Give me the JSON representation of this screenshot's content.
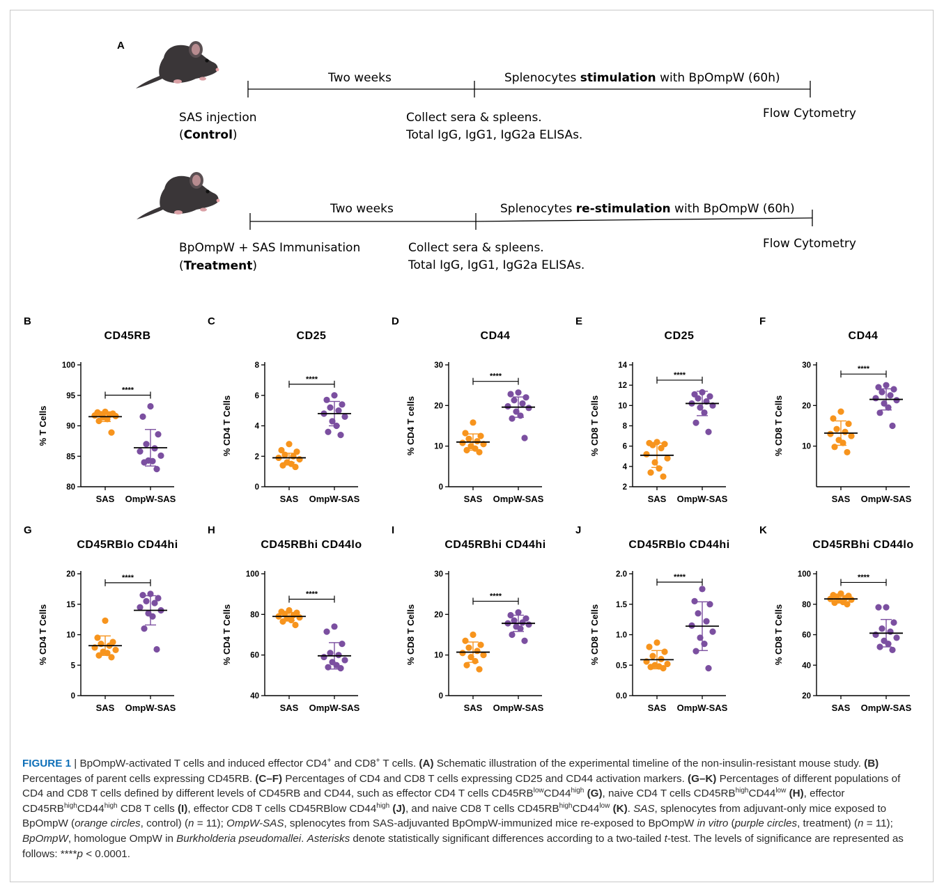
{
  "panel_a": {
    "label": "A",
    "control": {
      "period_label": "Two weeks",
      "stim_pre": "Splenocytes ",
      "stim_bold": "stimulation",
      "stim_post": " with BpOmpW (60h)",
      "start_line1": "SAS injection",
      "start_open": "(",
      "start_bold": "Control",
      "start_close": ")",
      "collect_line1": "Collect sera & spleens.",
      "collect_line2": "Total IgG, IgG1, IgG2a ELISAs.",
      "end_label": "Flow Cytometry",
      "icon": "mouse-icon"
    },
    "treatment": {
      "period_label": "Two weeks",
      "stim_pre": "Splenocytes ",
      "stim_bold": "re-stimulation",
      "stim_post": " with BpOmpW (60h)",
      "start_line1": "BpOmpW + SAS Immunisation",
      "start_open": "(",
      "start_bold": "Treatment",
      "start_close": ")",
      "collect_line1": "Collect sera & spleens.",
      "collect_line2": "Total IgG, IgG1, IgG2a ELISAs.",
      "end_label": "Flow Cytometry",
      "icon": "mouse-icon"
    }
  },
  "colors": {
    "sas": "#f7941d",
    "ompw": "#7b4fa0",
    "axis": "#000000",
    "caption_label": "#0e6fb8"
  },
  "chart_data": [
    {
      "id": "B",
      "type": "scatter",
      "title": "CD45RB",
      "ylabel": "% T Cells",
      "categories": [
        "SAS",
        "OmpW-SAS"
      ],
      "ylim": [
        80,
        100
      ],
      "yticks": [
        80,
        85,
        90,
        95,
        100
      ],
      "significance": "****",
      "series": [
        {
          "name": "SAS",
          "mean": 91.5,
          "sd": 0.8,
          "values": [
            92.3,
            92.2,
            92.0,
            91.9,
            91.8,
            91.7,
            91.6,
            91.4,
            91.1,
            90.8,
            88.9
          ]
        },
        {
          "name": "OmpW-SAS",
          "mean": 86.4,
          "sd": 3.0,
          "values": [
            93.2,
            91.5,
            88.6,
            87.0,
            86.3,
            85.8,
            85.1,
            84.3,
            84.2,
            84.0,
            82.9
          ]
        }
      ]
    },
    {
      "id": "C",
      "type": "scatter",
      "title": "CD25",
      "ylabel": "% CD4 T Cells",
      "categories": [
        "SAS",
        "OmpW-SAS"
      ],
      "ylim": [
        0,
        8
      ],
      "yticks": [
        0,
        2,
        4,
        6,
        8
      ],
      "significance": "****",
      "series": [
        {
          "name": "SAS",
          "mean": 1.9,
          "sd": 0.3,
          "values": [
            2.8,
            2.4,
            2.3,
            2.1,
            2.0,
            1.9,
            1.8,
            1.6,
            1.5,
            1.4,
            1.3
          ]
        },
        {
          "name": "OmpW-SAS",
          "mean": 4.8,
          "sd": 0.8,
          "values": [
            6.0,
            5.7,
            5.4,
            5.2,
            5.0,
            4.8,
            4.6,
            4.3,
            4.0,
            3.6,
            3.4
          ]
        }
      ]
    },
    {
      "id": "D",
      "type": "scatter",
      "title": "CD44",
      "ylabel": "% CD4 T cells",
      "categories": [
        "SAS",
        "OmpW-SAS"
      ],
      "ylim": [
        0,
        30
      ],
      "yticks": [
        0,
        10,
        20,
        30
      ],
      "significance": "****",
      "series": [
        {
          "name": "SAS",
          "mean": 11.0,
          "sd": 2.0,
          "values": [
            15.8,
            13.2,
            12.5,
            11.8,
            11.2,
            10.8,
            10.5,
            10.0,
            9.4,
            9.0,
            8.5
          ]
        },
        {
          "name": "OmpW-SAS",
          "mean": 19.6,
          "sd": 2.5,
          "values": [
            23.2,
            22.8,
            22.0,
            21.3,
            20.5,
            19.8,
            19.4,
            18.5,
            17.5,
            16.8,
            12.0
          ]
        }
      ]
    },
    {
      "id": "E",
      "type": "scatter",
      "title": "CD25",
      "ylabel": "% CD8 T Cells",
      "categories": [
        "SAS",
        "OmpW-SAS"
      ],
      "ylim": [
        2,
        14
      ],
      "yticks": [
        2,
        4,
        6,
        8,
        10,
        12,
        14
      ],
      "significance": "****",
      "series": [
        {
          "name": "SAS",
          "mean": 5.1,
          "sd": 1.2,
          "values": [
            6.4,
            6.3,
            6.2,
            6.1,
            5.8,
            5.2,
            4.8,
            4.4,
            3.8,
            3.4,
            3.0
          ]
        },
        {
          "name": "OmpW-SAS",
          "mean": 10.2,
          "sd": 1.2,
          "values": [
            11.3,
            11.1,
            10.9,
            10.7,
            10.4,
            10.2,
            10.0,
            9.8,
            9.3,
            8.3,
            7.4
          ]
        }
      ]
    },
    {
      "id": "F",
      "type": "scatter",
      "title": "CD44",
      "ylabel": "% CD8 T Cells",
      "categories": [
        "SAS",
        "OmpW-SAS"
      ],
      "ylim": [
        0,
        30
      ],
      "yticks": [
        10,
        20,
        30
      ],
      "significance": "****",
      "series": [
        {
          "name": "SAS",
          "mean": 13.2,
          "sd": 3.0,
          "values": [
            18.5,
            16.8,
            15.5,
            14.2,
            13.5,
            13.0,
            12.5,
            11.5,
            10.8,
            9.8,
            8.5
          ]
        },
        {
          "name": "OmpW-SAS",
          "mean": 21.5,
          "sd": 2.6,
          "values": [
            25.0,
            24.5,
            24.0,
            23.3,
            22.5,
            21.8,
            21.3,
            20.5,
            19.5,
            18.2,
            15.0
          ]
        }
      ]
    },
    {
      "id": "G",
      "type": "scatter",
      "title": "CD45RBlo CD44hi",
      "ylabel": "% CD4 T Cells",
      "categories": [
        "SAS",
        "OmpW-SAS"
      ],
      "ylim": [
        0,
        20
      ],
      "yticks": [
        0,
        5,
        10,
        15,
        20
      ],
      "significance": "****",
      "series": [
        {
          "name": "SAS",
          "mean": 8.2,
          "sd": 1.6,
          "values": [
            12.3,
            9.5,
            8.8,
            8.5,
            8.2,
            7.9,
            7.5,
            7.2,
            7.0,
            6.6,
            6.3
          ]
        },
        {
          "name": "OmpW-SAS",
          "mean": 14.0,
          "sd": 2.4,
          "values": [
            16.7,
            16.5,
            16.0,
            15.5,
            15.2,
            14.5,
            14.0,
            13.5,
            13.0,
            11.0,
            7.6
          ]
        }
      ]
    },
    {
      "id": "H",
      "type": "scatter",
      "title": "CD45RBhi CD44lo",
      "ylabel": "% CD4 T Cells",
      "categories": [
        "SAS",
        "OmpW-SAS"
      ],
      "ylim": [
        40,
        100
      ],
      "yticks": [
        40,
        60,
        80,
        100
      ],
      "significance": "****",
      "series": [
        {
          "name": "SAS",
          "mean": 79.0,
          "sd": 2.0,
          "values": [
            82.0,
            81.3,
            80.8,
            80.2,
            79.6,
            79.0,
            78.5,
            78.0,
            77.2,
            76.5,
            74.8
          ]
        },
        {
          "name": "OmpW-SAS",
          "mean": 59.6,
          "sd": 6.5,
          "values": [
            74.0,
            71.5,
            65.5,
            61.0,
            60.0,
            59.0,
            57.5,
            56.5,
            55.0,
            54.0,
            53.5
          ]
        }
      ]
    },
    {
      "id": "I",
      "type": "scatter",
      "title": "CD45RBhi CD44hi",
      "ylabel": "% CD8 T Cells",
      "categories": [
        "SAS",
        "OmpW-SAS"
      ],
      "ylim": [
        0,
        30
      ],
      "yticks": [
        0,
        10,
        20,
        30
      ],
      "significance": "****",
      "series": [
        {
          "name": "SAS",
          "mean": 10.7,
          "sd": 2.5,
          "values": [
            15.0,
            13.5,
            12.5,
            11.8,
            11.0,
            10.5,
            10.0,
            9.5,
            8.5,
            7.5,
            6.5
          ]
        },
        {
          "name": "OmpW-SAS",
          "mean": 17.8,
          "sd": 2.0,
          "values": [
            20.5,
            19.8,
            19.0,
            18.5,
            18.0,
            17.8,
            17.5,
            17.0,
            16.5,
            15.0,
            13.5
          ]
        }
      ]
    },
    {
      "id": "J",
      "type": "scatter",
      "title": "CD45RBlo CD44hi",
      "ylabel": "% CD8 T Cells",
      "categories": [
        "SAS",
        "OmpW-SAS"
      ],
      "ylim": [
        0,
        2.0
      ],
      "yticks": [
        0.0,
        0.5,
        1.0,
        1.5,
        2.0
      ],
      "significance": "****",
      "series": [
        {
          "name": "SAS",
          "mean": 0.59,
          "sd": 0.15,
          "values": [
            0.87,
            0.8,
            0.72,
            0.65,
            0.6,
            0.56,
            0.52,
            0.5,
            0.48,
            0.47,
            0.45
          ]
        },
        {
          "name": "OmpW-SAS",
          "mean": 1.14,
          "sd": 0.4,
          "values": [
            1.75,
            1.55,
            1.5,
            1.35,
            1.22,
            1.15,
            1.05,
            0.95,
            0.85,
            0.73,
            0.45
          ]
        }
      ]
    },
    {
      "id": "K",
      "type": "scatter",
      "title": "CD45RBhi CD44lo",
      "ylabel": "% CD8 T Cells",
      "categories": [
        "SAS",
        "OmpW-SAS"
      ],
      "ylim": [
        20,
        100
      ],
      "yticks": [
        20,
        40,
        60,
        80,
        100
      ],
      "significance": "****",
      "series": [
        {
          "name": "SAS",
          "mean": 83.5,
          "sd": 2.0,
          "values": [
            87.0,
            86.0,
            85.5,
            85.0,
            84.0,
            83.5,
            83.0,
            82.5,
            81.5,
            81.0,
            80.0
          ]
        },
        {
          "name": "OmpW-SAS",
          "mean": 61.0,
          "sd": 9.0,
          "values": [
            78.0,
            78.0,
            68.0,
            64.0,
            62.0,
            60.0,
            58.0,
            56.0,
            54.0,
            52.0,
            50.0
          ]
        }
      ]
    }
  ],
  "caption": {
    "figure_label": "FIGURE 1",
    "sep": " | ",
    "parts": [
      {
        "t": "BpOmpW-activated T cells and induced effector CD4"
      },
      {
        "t": "+",
        "f": "sup"
      },
      {
        "t": " and CD8"
      },
      {
        "t": "+",
        "f": "sup"
      },
      {
        "t": " T cells. "
      },
      {
        "t": "(A)",
        "f": "b"
      },
      {
        "t": " Schematic illustration of the experimental timeline of the non-insulin-resistant mouse study. "
      },
      {
        "t": "(B)",
        "f": "b"
      },
      {
        "t": " Percentages of parent cells expressing CD45RB. "
      },
      {
        "t": "(C–F)",
        "f": "b"
      },
      {
        "t": " Percentages of CD4 and CD8 T cells expressing CD25 and CD44 activation markers. "
      },
      {
        "t": "(G–K)",
        "f": "b"
      },
      {
        "t": " Percentages of different populations of CD4 and CD8 T cells defined by different levels of CD45RB and CD44, such as effector CD4 T cells CD45RB"
      },
      {
        "t": "low",
        "f": "sup"
      },
      {
        "t": "CD44"
      },
      {
        "t": "high",
        "f": "sup"
      },
      {
        "t": " "
      },
      {
        "t": "(G)",
        "f": "b"
      },
      {
        "t": ", naive CD4 T cells CD45RB"
      },
      {
        "t": "high",
        "f": "sup"
      },
      {
        "t": "CD44"
      },
      {
        "t": "low",
        "f": "sup"
      },
      {
        "t": " "
      },
      {
        "t": "(H)",
        "f": "b"
      },
      {
        "t": ", effector CD45RB"
      },
      {
        "t": "high",
        "f": "sup"
      },
      {
        "t": "CD44"
      },
      {
        "t": "high",
        "f": "sup"
      },
      {
        "t": " CD8 T cells "
      },
      {
        "t": "(I)",
        "f": "b"
      },
      {
        "t": ", effector CD8 T cells CD45RBlow CD44"
      },
      {
        "t": "high",
        "f": "sup"
      },
      {
        "t": " "
      },
      {
        "t": "(J)",
        "f": "b"
      },
      {
        "t": ", and naive CD8 T cells CD45RB"
      },
      {
        "t": "high",
        "f": "sup"
      },
      {
        "t": "CD44"
      },
      {
        "t": "low",
        "f": "sup"
      },
      {
        "t": " "
      },
      {
        "t": "(K)",
        "f": "b"
      },
      {
        "t": ". "
      },
      {
        "t": "SAS",
        "f": "i"
      },
      {
        "t": ", splenocytes from adjuvant-only mice exposed to BpOmpW ("
      },
      {
        "t": "orange circles",
        "f": "i"
      },
      {
        "t": ", control) ("
      },
      {
        "t": "n",
        "f": "i"
      },
      {
        "t": " = 11); "
      },
      {
        "t": "OmpW-SAS",
        "f": "i"
      },
      {
        "t": ", splenocytes from SAS-adjuvanted BpOmpW-immunized mice re-exposed to BpOmpW "
      },
      {
        "t": "in vitro",
        "f": "i"
      },
      {
        "t": " ("
      },
      {
        "t": "purple circles",
        "f": "i"
      },
      {
        "t": ", treatment) ("
      },
      {
        "t": "n",
        "f": "i"
      },
      {
        "t": " = 11); "
      },
      {
        "t": "BpOmpW",
        "f": "i"
      },
      {
        "t": ", homologue OmpW in "
      },
      {
        "t": "Burkholderia pseudomallei",
        "f": "i"
      },
      {
        "t": ". "
      },
      {
        "t": "Asterisks",
        "f": "i"
      },
      {
        "t": " denote statistically significant differences according to a two-tailed "
      },
      {
        "t": "t",
        "f": "i"
      },
      {
        "t": "-test. The levels of significance are represented as follows: ****"
      },
      {
        "t": "p",
        "f": "i"
      },
      {
        "t": " < 0.0001."
      }
    ]
  }
}
